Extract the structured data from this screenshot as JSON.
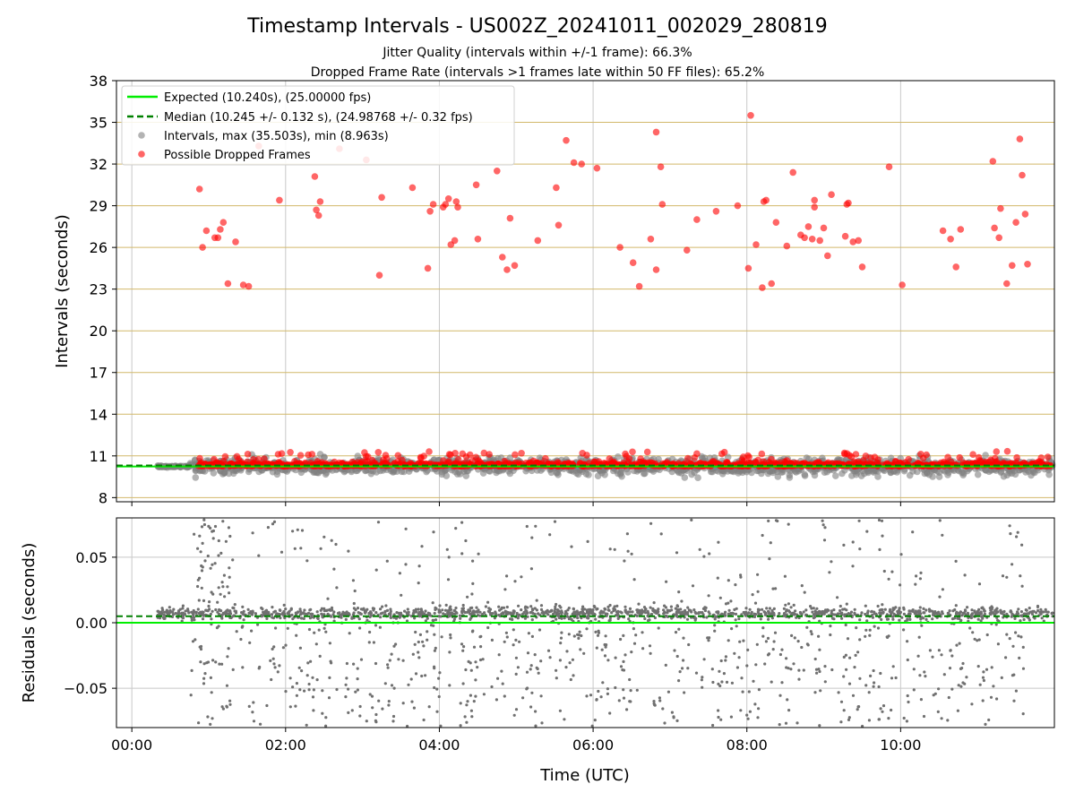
{
  "figure": {
    "title": "Timestamp Intervals - US002Z_20241011_002029_280819",
    "subtitle_1": "Jitter Quality (intervals within +/-1 frame): 66.3%",
    "subtitle_2": "Dropped Frame Rate (intervals >1 frames late within 50 FF files): 65.2%"
  },
  "colors": {
    "expected": "#00ee00",
    "median": "#008000",
    "intervals": "#808080",
    "dropped": "#ff0000",
    "hgrid_top": "#d2b86a",
    "grid": "#c8c8c8"
  },
  "chart_data": [
    {
      "type": "scatter",
      "ylabel": "Intervals (seconds)",
      "xlim_hours": [
        -0.2,
        12.0
      ],
      "ylim": [
        7.7,
        38
      ],
      "yticks": [
        8,
        11,
        14,
        17,
        20,
        23,
        26,
        29,
        32,
        35,
        38
      ],
      "x_grid_hours": [
        0,
        2,
        4,
        6,
        8,
        10
      ],
      "grid": true,
      "legend_placement": "top-left",
      "legend": [
        "Expected (10.240s), (25.00000 fps)",
        "Median (10.245 +/- 0.132 s), (24.98768 +/- 0.32 fps)",
        "Intervals, max (35.503s), min (8.963s)",
        "Possible Dropped Frames"
      ],
      "expected_interval": 10.24,
      "median_interval": 10.245,
      "dropped_frames": [
        [
          0.88,
          30.2
        ],
        [
          0.92,
          26.0
        ],
        [
          0.97,
          27.2
        ],
        [
          1.08,
          26.7
        ],
        [
          1.12,
          26.7
        ],
        [
          1.15,
          27.3
        ],
        [
          1.19,
          27.8
        ],
        [
          1.25,
          23.4
        ],
        [
          1.35,
          26.4
        ],
        [
          1.45,
          23.3
        ],
        [
          1.52,
          23.2
        ],
        [
          1.65,
          33.3
        ],
        [
          1.92,
          29.4
        ],
        [
          2.38,
          31.1
        ],
        [
          2.4,
          28.7
        ],
        [
          2.43,
          28.3
        ],
        [
          2.45,
          29.3
        ],
        [
          2.7,
          33.1
        ],
        [
          3.05,
          32.3
        ],
        [
          3.22,
          24.0
        ],
        [
          3.25,
          29.6
        ],
        [
          3.65,
          30.3
        ],
        [
          3.85,
          24.5
        ],
        [
          3.88,
          28.6
        ],
        [
          3.92,
          29.1
        ],
        [
          4.05,
          28.9
        ],
        [
          4.08,
          29.1
        ],
        [
          4.12,
          29.5
        ],
        [
          4.15,
          26.2
        ],
        [
          4.2,
          26.5
        ],
        [
          4.22,
          29.3
        ],
        [
          4.24,
          28.9
        ],
        [
          4.48,
          30.5
        ],
        [
          4.5,
          26.6
        ],
        [
          4.75,
          31.5
        ],
        [
          4.82,
          25.3
        ],
        [
          4.88,
          24.4
        ],
        [
          4.92,
          28.1
        ],
        [
          4.98,
          24.7
        ],
        [
          5.28,
          26.5
        ],
        [
          5.52,
          30.3
        ],
        [
          5.55,
          27.6
        ],
        [
          5.65,
          33.7
        ],
        [
          5.75,
          32.1
        ],
        [
          5.85,
          32.0
        ],
        [
          6.05,
          31.7
        ],
        [
          6.35,
          26.0
        ],
        [
          6.52,
          24.9
        ],
        [
          6.6,
          23.2
        ],
        [
          6.75,
          26.6
        ],
        [
          6.82,
          34.3
        ],
        [
          6.82,
          24.4
        ],
        [
          6.88,
          31.8
        ],
        [
          6.9,
          29.1
        ],
        [
          7.22,
          25.8
        ],
        [
          7.35,
          28.0
        ],
        [
          7.6,
          28.6
        ],
        [
          7.88,
          29.0
        ],
        [
          8.02,
          24.5
        ],
        [
          8.05,
          35.5
        ],
        [
          8.12,
          26.2
        ],
        [
          8.2,
          23.1
        ],
        [
          8.22,
          29.3
        ],
        [
          8.25,
          29.4
        ],
        [
          8.32,
          23.4
        ],
        [
          8.38,
          27.8
        ],
        [
          8.52,
          26.1
        ],
        [
          8.6,
          31.4
        ],
        [
          8.7,
          26.9
        ],
        [
          8.75,
          26.7
        ],
        [
          8.8,
          27.5
        ],
        [
          8.85,
          26.6
        ],
        [
          8.88,
          28.9
        ],
        [
          8.88,
          29.4
        ],
        [
          8.95,
          26.5
        ],
        [
          9.0,
          27.4
        ],
        [
          9.05,
          25.4
        ],
        [
          9.1,
          29.8
        ],
        [
          9.28,
          26.8
        ],
        [
          9.3,
          29.1
        ],
        [
          9.32,
          29.2
        ],
        [
          9.38,
          26.4
        ],
        [
          9.45,
          26.5
        ],
        [
          9.5,
          24.6
        ],
        [
          9.85,
          31.8
        ],
        [
          10.02,
          23.3
        ],
        [
          10.55,
          27.2
        ],
        [
          10.65,
          26.6
        ],
        [
          10.72,
          24.6
        ],
        [
          10.78,
          27.3
        ],
        [
          11.2,
          32.2
        ],
        [
          11.22,
          27.4
        ],
        [
          11.28,
          26.7
        ],
        [
          11.3,
          28.8
        ],
        [
          11.38,
          23.4
        ],
        [
          11.45,
          24.7
        ],
        [
          11.5,
          27.8
        ],
        [
          11.55,
          33.8
        ],
        [
          11.58,
          31.2
        ],
        [
          11.62,
          28.4
        ],
        [
          11.65,
          24.8
        ]
      ]
    },
    {
      "type": "scatter",
      "xlabel": "Time (UTC)",
      "ylabel": "Residuals (seconds)",
      "xlim_hours": [
        -0.2,
        12.0
      ],
      "ylim": [
        -0.08,
        0.08
      ],
      "yticks": [
        0.05,
        0.0,
        -0.05
      ],
      "ytick_labels": [
        "0.05",
        "0.00",
        "−0.05"
      ],
      "xticks": [
        "00:00",
        "02:00",
        "04:00",
        "06:00",
        "08:00",
        "10:00"
      ],
      "xticks_hours": [
        0,
        2,
        4,
        6,
        8,
        10
      ],
      "grid": true,
      "expected_residual": 0.0,
      "median_residual": 0.005
    }
  ]
}
